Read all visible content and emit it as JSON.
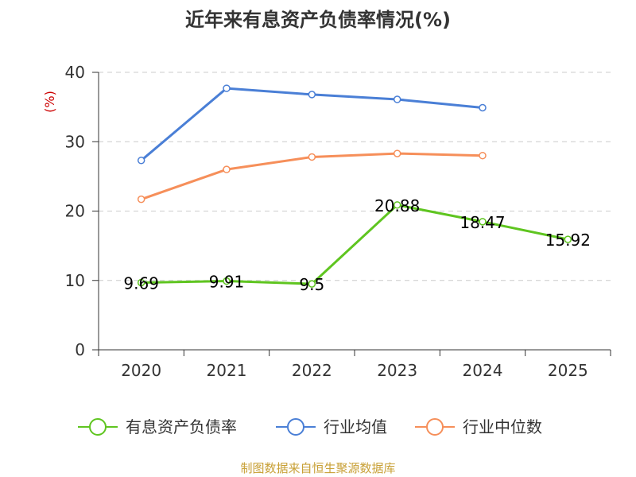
{
  "chart_data": {
    "type": "line",
    "title": "近年来有息资产负债率情况(%)",
    "ylabel": "(%)",
    "xlabel": "",
    "categories": [
      "2020",
      "2021",
      "2022",
      "2023",
      "2024",
      "2025"
    ],
    "ylim": [
      0,
      40
    ],
    "yticks": [
      0,
      10,
      20,
      30,
      40
    ],
    "grid": "horizontal-dashed",
    "legend_position": "bottom",
    "series": [
      {
        "name": "有息资产负债率",
        "color": "#5fc520",
        "values": [
          9.69,
          9.91,
          9.5,
          20.88,
          18.47,
          15.92
        ],
        "labels": [
          "9.69",
          "9.91",
          "9.5",
          "20.88",
          "18.47",
          "15.92"
        ]
      },
      {
        "name": "行业均值",
        "color": "#4a7fd6",
        "values": [
          27.3,
          37.7,
          36.8,
          36.1,
          34.9,
          null
        ]
      },
      {
        "name": "行业中位数",
        "color": "#f68f5a",
        "values": [
          21.7,
          26.0,
          27.8,
          28.3,
          28.0,
          null
        ]
      }
    ]
  },
  "source": "制图数据来自恒生聚源数据库",
  "colors": {
    "ylabel": "#cc0000",
    "source": "#c8a036",
    "axis": "#333333",
    "grid": "#cccccc"
  }
}
